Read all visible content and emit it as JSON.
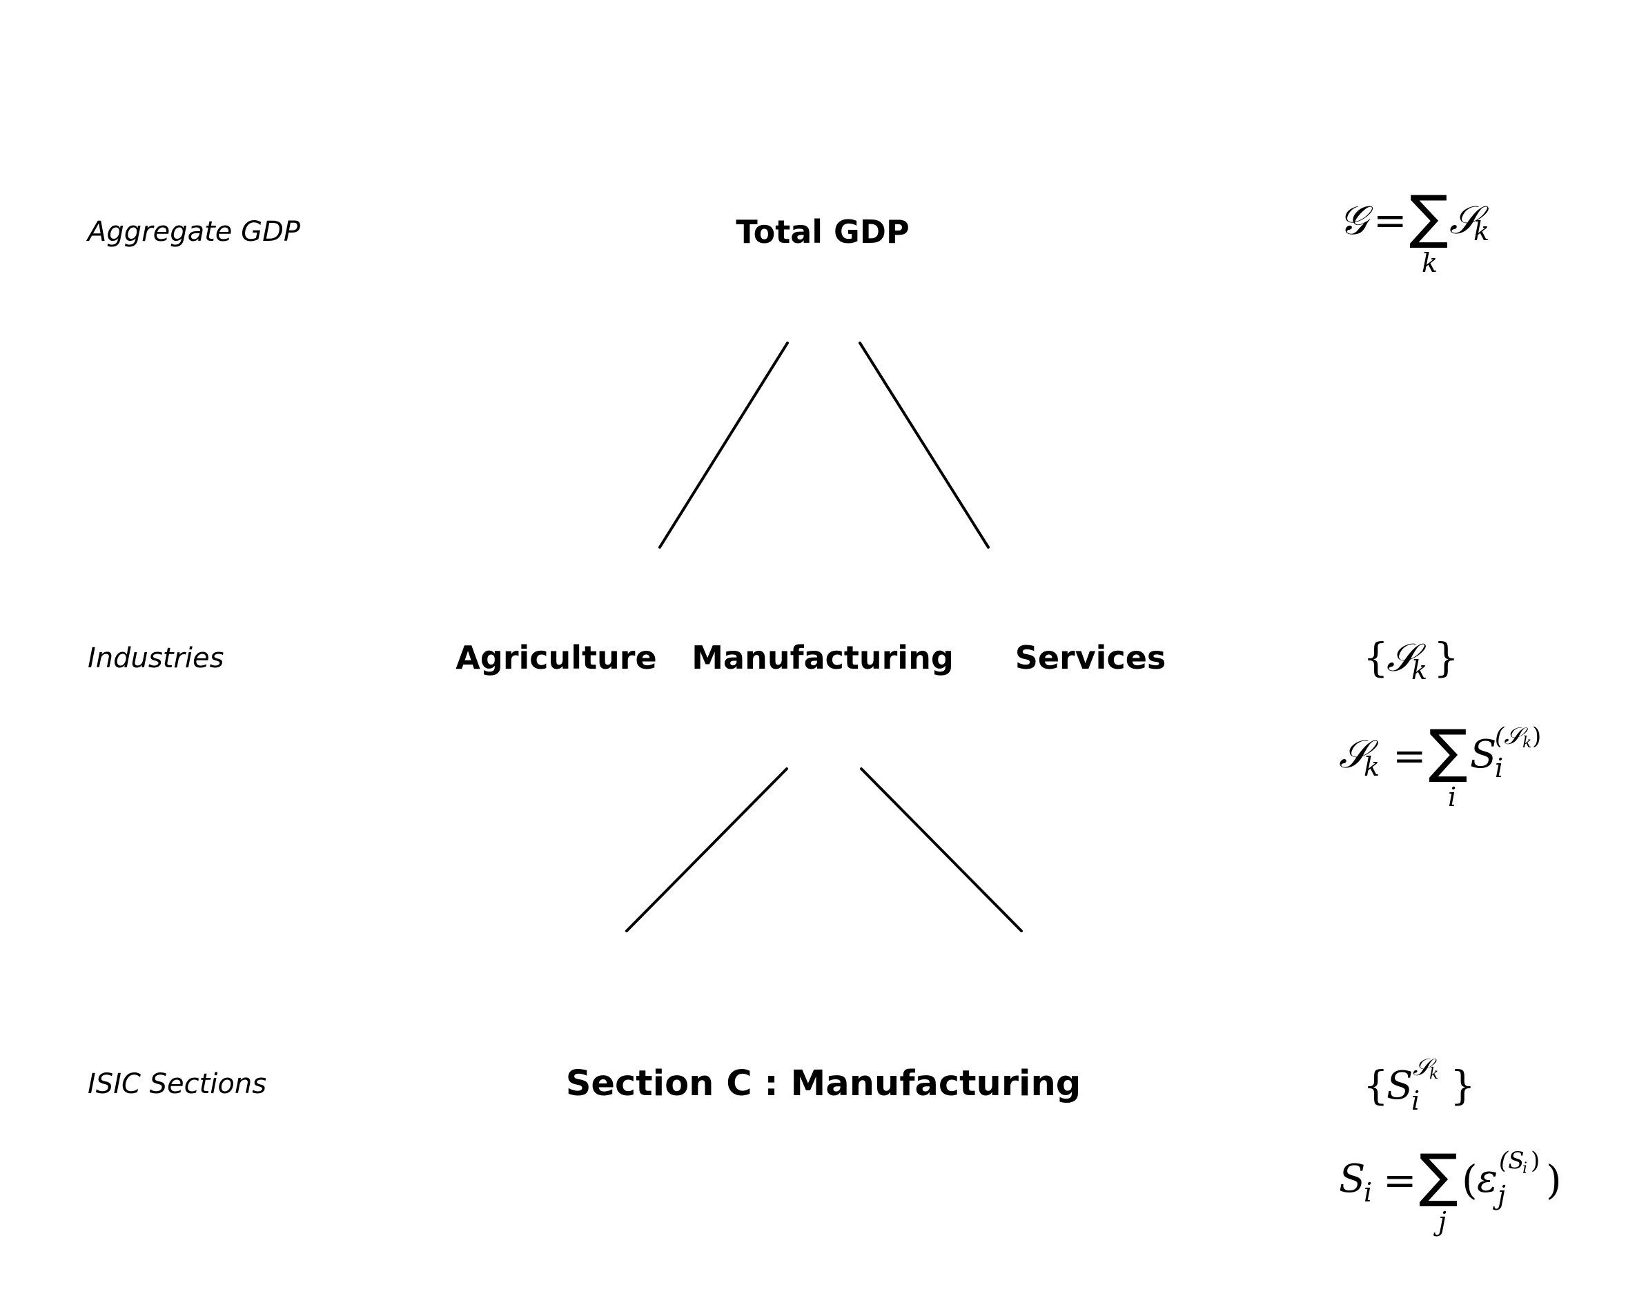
{
  "levels": [
    {
      "label": "Aggregate GDP"
    },
    {
      "label": "Industries"
    },
    {
      "label": "ISIC Sections"
    }
  ],
  "nodes": {
    "total_gdp": "Total GDP",
    "agriculture": "Agriculture",
    "manufacturing": "Manufacturing",
    "services": "Services",
    "section_c": "Section C : Manufacturing"
  },
  "formulas": {
    "aggregate": {
      "lhs": "𝒢",
      "eq": "=",
      "op": "∑",
      "sub": "k",
      "term": "𝒮",
      "term_sub": "k"
    },
    "industries_set": {
      "open": "{",
      "term": "𝒮",
      "term_sub": "k",
      "close": "}"
    },
    "industries_sum": {
      "lhs": "𝒮",
      "lhs_sub": "k",
      "eq": "=",
      "op": "∑",
      "sub": "i",
      "term": "S",
      "term_sub": "i",
      "term_sup": "(𝒮",
      "term_sup_sub": "k",
      "term_sup_close": ")"
    },
    "sections_set": {
      "open": "{",
      "term": "S",
      "term_sub": "i",
      "term_sup": "𝒮",
      "term_sup_sub": "k",
      "close": "}"
    },
    "sections_sum": {
      "lhs": "S",
      "lhs_sub": "i",
      "eq": "=",
      "op": "∑",
      "sub": "j",
      "open": "(",
      "term": "ε",
      "term_sub": "j",
      "term_sup": "(S",
      "term_sup_sub": "i",
      "term_sup_close": ")",
      "close": ")"
    }
  }
}
